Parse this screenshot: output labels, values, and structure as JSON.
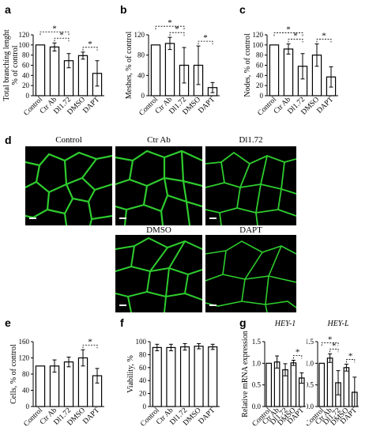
{
  "panel_letters": {
    "a": "a",
    "b": "b",
    "c": "c",
    "d": "d",
    "e": "e",
    "f": "f",
    "g": "g"
  },
  "micrographs": [
    {
      "label": "Control"
    },
    {
      "label": "Ctr Ab"
    },
    {
      "label": "Dl1.72"
    },
    {
      "label": "DMSO"
    },
    {
      "label": "DAPT"
    }
  ],
  "colors": {
    "network": "#2ecc2e",
    "background": "#000000",
    "bar_fill": "#ffffff",
    "bar_stroke": "#000000"
  },
  "chart_data": [
    {
      "id": "a",
      "type": "bar",
      "ylabel": "Total branching lenght\n% of control",
      "ylim": [
        0,
        120
      ],
      "yticks": [
        0,
        20,
        40,
        60,
        80,
        100,
        120
      ],
      "categories": [
        "Control",
        "Ctr Ab",
        "Dl1.72",
        "DMSO",
        "DAPT"
      ],
      "values": [
        100,
        96,
        69,
        79,
        44
      ],
      "errors": [
        0,
        8,
        14,
        7,
        25
      ],
      "sig": [
        {
          "from": 0,
          "to": 2,
          "label": "*"
        },
        {
          "from": 1,
          "to": 2,
          "label": "*"
        },
        {
          "from": 3,
          "to": 4,
          "label": "*"
        }
      ]
    },
    {
      "id": "b",
      "type": "bar",
      "ylabel": "Meshes, % of control",
      "ylim": [
        0,
        120
      ],
      "yticks": [
        0,
        40,
        80,
        120
      ],
      "categories": [
        "Control",
        "Ctr Ab",
        "Dl1.72",
        "DMSO",
        "DAPT"
      ],
      "values": [
        100,
        103,
        60,
        60,
        16
      ],
      "errors": [
        0,
        12,
        35,
        38,
        10
      ],
      "sig": [
        {
          "from": 0,
          "to": 2,
          "label": "*"
        },
        {
          "from": 1,
          "to": 2,
          "label": "*"
        },
        {
          "from": 3,
          "to": 4,
          "label": "*"
        }
      ]
    },
    {
      "id": "c",
      "type": "bar",
      "ylabel": "Nodes, % of control",
      "ylim": [
        0,
        120
      ],
      "yticks": [
        0,
        20,
        40,
        60,
        80,
        100,
        120
      ],
      "categories": [
        "Control",
        "Ctr Ab",
        "Dl1.72",
        "DMSO",
        "DAPT"
      ],
      "values": [
        100,
        92,
        58,
        80,
        37
      ],
      "errors": [
        0,
        10,
        25,
        22,
        20
      ],
      "sig": [
        {
          "from": 0,
          "to": 2,
          "label": "*"
        },
        {
          "from": 1,
          "to": 2,
          "label": "*"
        },
        {
          "from": 3,
          "to": 4,
          "label": "*"
        }
      ]
    },
    {
      "id": "e",
      "type": "bar",
      "ylabel": "Cells, % of control",
      "ylim": [
        0,
        160
      ],
      "yticks": [
        0,
        40,
        80,
        120,
        160
      ],
      "categories": [
        "Control",
        "Ctr Ab",
        "Dl1.72",
        "DMSO",
        "DAPT"
      ],
      "values": [
        100,
        100,
        110,
        120,
        76
      ],
      "errors": [
        0,
        15,
        12,
        20,
        18
      ],
      "sig": [
        {
          "from": 3,
          "to": 4,
          "label": "*"
        }
      ]
    },
    {
      "id": "f",
      "type": "bar",
      "ylabel": "Viability, %",
      "ylim": [
        0,
        100
      ],
      "yticks": [
        0,
        20,
        40,
        60,
        80,
        100
      ],
      "categories": [
        "Control",
        "Ctr Ab",
        "Dl1.72",
        "DMSO",
        "DAPT"
      ],
      "values": [
        91,
        91,
        92,
        93,
        92
      ],
      "errors": [
        5,
        5,
        5,
        4,
        4
      ],
      "sig": []
    },
    {
      "id": "g1",
      "type": "bar",
      "title": "HEY-1",
      "ylabel": "Relative mRNA expression",
      "ylim": [
        0,
        1.5
      ],
      "yticks": [
        0,
        0.5,
        1.0,
        1.5
      ],
      "categories": [
        "Control",
        "Ctr Ab",
        "Dl1.72",
        "DMSO",
        "DAPT"
      ],
      "values": [
        1.0,
        1.03,
        0.85,
        1.01,
        0.66
      ],
      "errors": [
        0,
        0.14,
        0.14,
        0.06,
        0.12
      ],
      "sig": [
        {
          "from": 3,
          "to": 4,
          "label": "*"
        }
      ]
    },
    {
      "id": "g2",
      "type": "bar",
      "title": "HEY-L",
      "ylabel": "",
      "ylim": [
        0,
        1.5
      ],
      "yticks": [
        0,
        0.5,
        1.0,
        1.5
      ],
      "categories": [
        "Control",
        "Ctr Ab",
        "Dl1.72",
        "DMSO",
        "DAPT"
      ],
      "values": [
        1.0,
        1.12,
        0.55,
        0.9,
        0.33
      ],
      "errors": [
        0,
        0.1,
        0.28,
        0.08,
        0.35
      ],
      "sig": [
        {
          "from": 0,
          "to": 2,
          "label": "*"
        },
        {
          "from": 1,
          "to": 2,
          "label": "*"
        },
        {
          "from": 3,
          "to": 4,
          "label": "*"
        }
      ]
    }
  ]
}
